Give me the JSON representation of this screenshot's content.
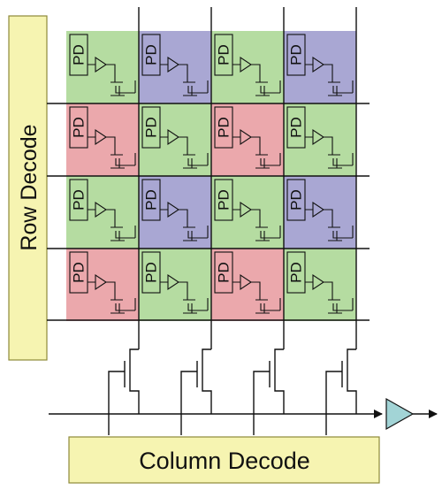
{
  "labels": {
    "row_decode": "Row Decode",
    "column_decode": "Column Decode",
    "photodiode": "PD"
  },
  "array": {
    "rows": 4,
    "columns": 4,
    "color_filter_pattern": [
      [
        "green",
        "blue",
        "green",
        "blue"
      ],
      [
        "red",
        "green",
        "red",
        "green"
      ],
      [
        "green",
        "blue",
        "green",
        "blue"
      ],
      [
        "red",
        "green",
        "red",
        "green"
      ]
    ]
  },
  "colors": {
    "green": "#b5dca1",
    "blue": "#a9a7d3",
    "red": "#eba8ac",
    "decoder_fill": "#f6f4b1",
    "decoder_stroke": "#8e8a3a",
    "amplifier": "#a2d4d6",
    "wire": "#111111"
  }
}
